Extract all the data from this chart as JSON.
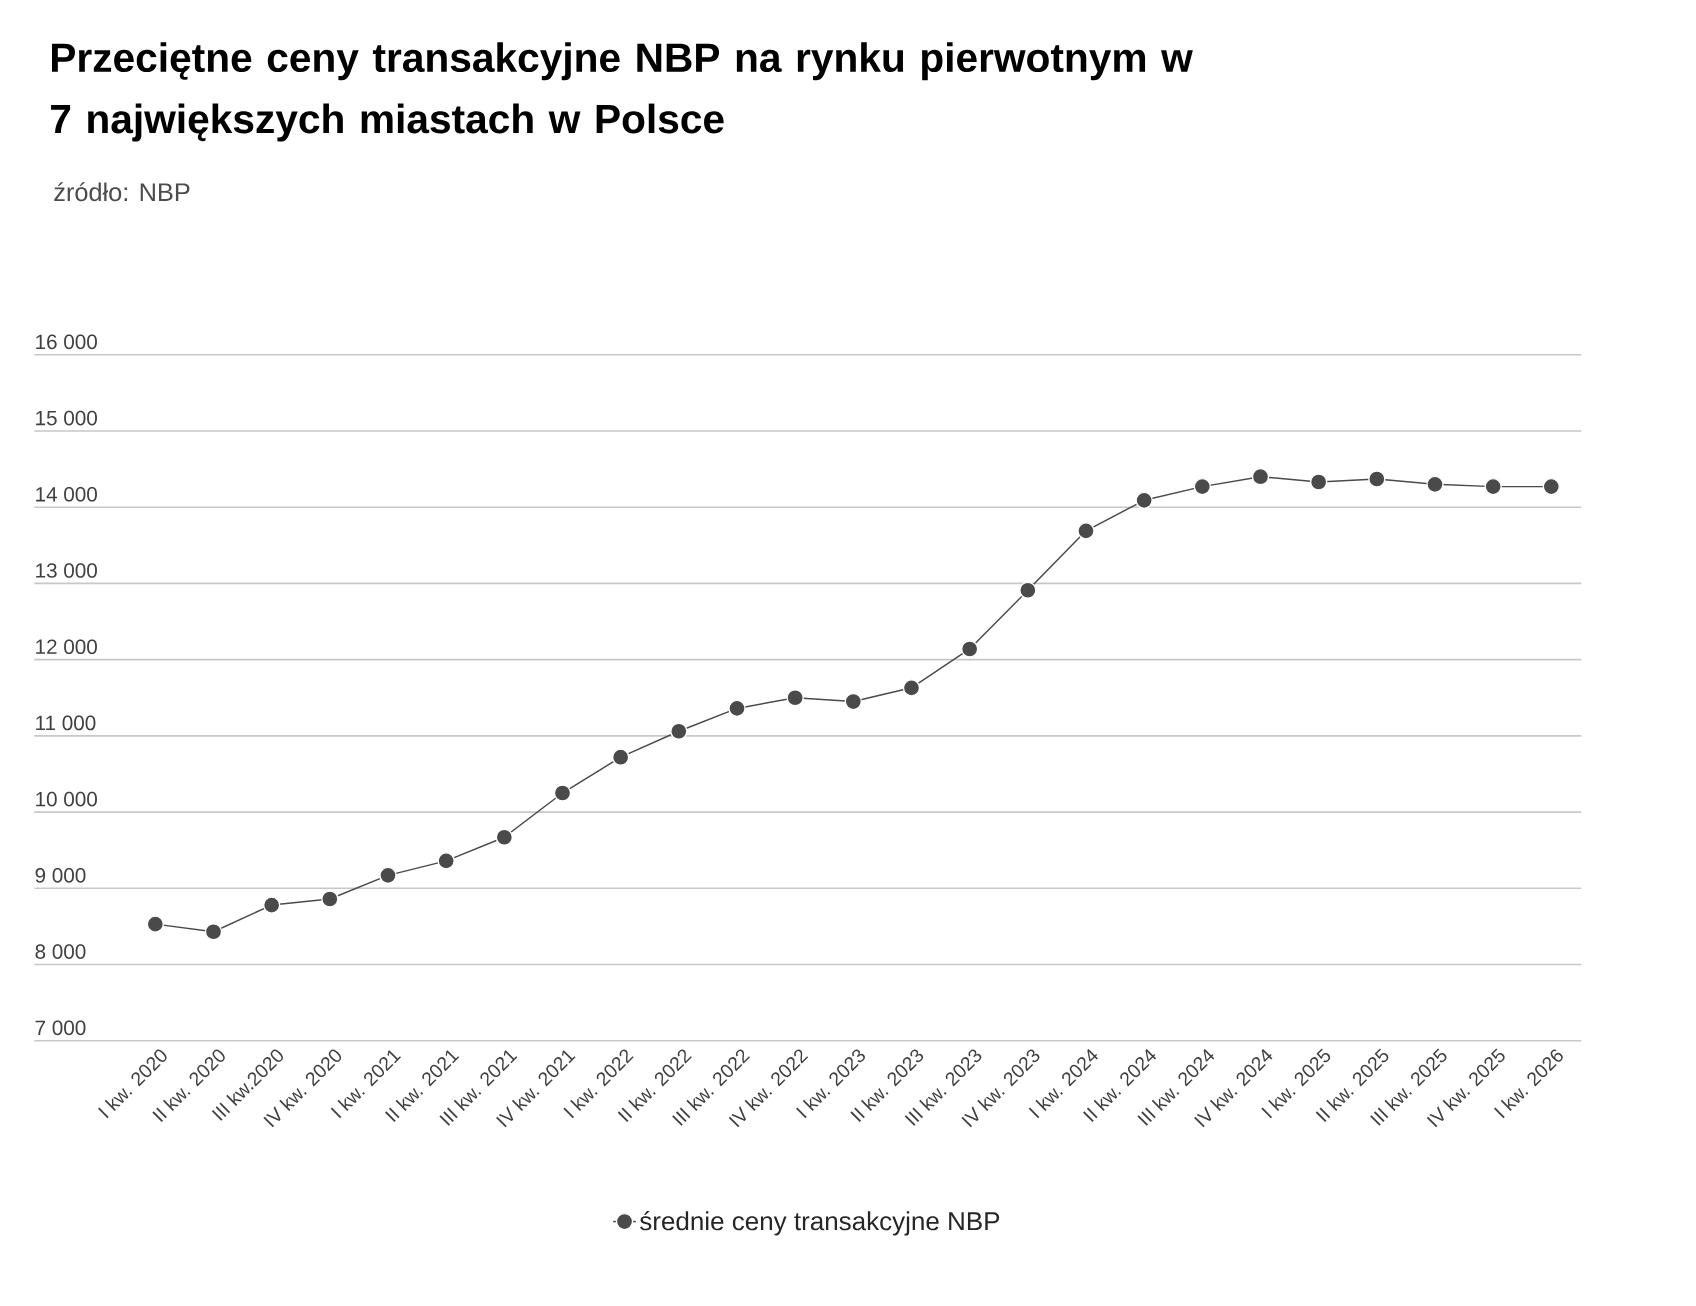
{
  "chart_data": {
    "type": "line",
    "title": "Przeciętne ceny transakcyjne NBP na rynku pierwotnym w 7 największych miastach w Polsce",
    "annotations": [
      "źródło: NBP"
    ],
    "categories": [
      "I kw. 2020",
      "II kw. 2020",
      "III kw.2020",
      "IV kw. 2020",
      "I kw. 2021",
      "II kw. 2021",
      "III kw. 2021",
      "IV kw. 2021",
      "I kw. 2022",
      "II kw. 2022",
      "III kw. 2022",
      "IV kw. 2022",
      "I kw. 2023",
      "II kw. 2023",
      "III kw. 2023",
      "IV kw. 2023",
      "I kw. 2024",
      "II kw. 2024",
      "III kw. 2024",
      "IV kw. 2024",
      "I kw. 2025",
      "II kw. 2025",
      "III kw. 2025",
      "IV kw. 2025",
      "I kw. 2026"
    ],
    "series": [
      {
        "name": "średnie ceny transakcyjne NBP",
        "color": "#4a4a4a",
        "values": [
          8530,
          8430,
          8780,
          8860,
          9170,
          9360,
          9670,
          10250,
          10720,
          11060,
          11360,
          11500,
          11450,
          11630,
          12140,
          12910,
          13690,
          14090,
          14270,
          14400,
          14330,
          14370,
          14300,
          14270,
          14270
        ]
      }
    ],
    "ylim": [
      7000,
      16000
    ],
    "yticks": [
      {
        "value": 7000,
        "label": "7 000"
      },
      {
        "value": 8000,
        "label": "8 000"
      },
      {
        "value": 9000,
        "label": "9 000"
      },
      {
        "value": 10000,
        "label": "10 000"
      },
      {
        "value": 11000,
        "label": "11 000"
      },
      {
        "value": 12000,
        "label": "12 000"
      },
      {
        "value": 13000,
        "label": "13 000"
      },
      {
        "value": 14000,
        "label": "14 000"
      },
      {
        "value": 15000,
        "label": "15 000"
      },
      {
        "value": 16000,
        "label": "16 000"
      }
    ],
    "grid": "y",
    "legend": "bottom",
    "marker": "circle",
    "line_style": "solid"
  }
}
